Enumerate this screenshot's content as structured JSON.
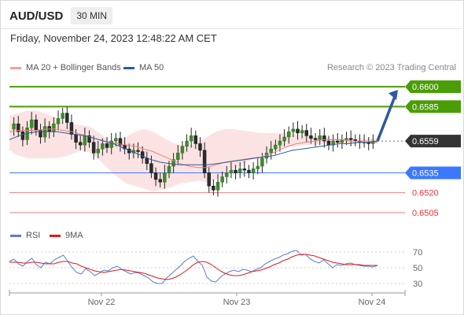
{
  "header": {
    "symbol": "AUD/USD",
    "timeframe": "30 MIN",
    "timestamp": "Friday, November 24, 2023 12:48:22 AM CET"
  },
  "legend": {
    "ma20": {
      "label": "MA 20 + Bollinger Bands",
      "color": "#f4a0a0"
    },
    "ma50": {
      "label": "MA 50",
      "color": "#2e5a9c"
    },
    "rsi": {
      "label": "RSI",
      "color": "#5b7bd5"
    },
    "ma9": {
      "label": "9MA",
      "color": "#e41a1a"
    }
  },
  "credit": "Research © 2023 Trading Central",
  "chart_data": {
    "type": "candlestick",
    "price_range": [
      0.6499,
      0.6606
    ],
    "x_ticks": [
      "Nov 22",
      "Nov 23",
      "Nov 24"
    ],
    "levels": [
      {
        "label": "0.6600",
        "value": 0.66,
        "style": "resistance",
        "color": "#4a9d06"
      },
      {
        "label": "0.6585",
        "value": 0.6585,
        "style": "resistance",
        "color": "#4a9d06"
      },
      {
        "label": "0.6559",
        "value": 0.6559,
        "style": "current",
        "color": "#333333"
      },
      {
        "label": "0.6535",
        "value": 0.6535,
        "style": "support",
        "color": "#3c78ff"
      },
      {
        "label": "0.6520",
        "value": 0.652,
        "style": "support",
        "color": "#f08080"
      },
      {
        "label": "0.6505",
        "value": 0.6505,
        "style": "support",
        "color": "#f08080"
      }
    ],
    "price_series": [
      0.6568,
      0.6572,
      0.6566,
      0.656,
      0.6569,
      0.6575,
      0.6567,
      0.6562,
      0.657,
      0.6566,
      0.6572,
      0.6576,
      0.658,
      0.6573,
      0.6564,
      0.6558,
      0.6556,
      0.6563,
      0.6558,
      0.655,
      0.6553,
      0.6557,
      0.6554,
      0.6559,
      0.6561,
      0.6556,
      0.6553,
      0.655,
      0.6552,
      0.6551,
      0.6546,
      0.6542,
      0.6535,
      0.653,
      0.6528,
      0.6535,
      0.654,
      0.6545,
      0.655,
      0.6555,
      0.6559,
      0.6563,
      0.6557,
      0.6552,
      0.6535,
      0.6525,
      0.6522,
      0.6528,
      0.6532,
      0.6535,
      0.6537,
      0.6535,
      0.6538,
      0.6537,
      0.6535,
      0.6538,
      0.654,
      0.6546,
      0.655,
      0.6553,
      0.6556,
      0.6559,
      0.6562,
      0.6566,
      0.6568,
      0.6565,
      0.6567,
      0.6563,
      0.6561,
      0.656,
      0.6563,
      0.6559,
      0.6556,
      0.6559,
      0.6558,
      0.656,
      0.6561,
      0.656,
      0.6559,
      0.6558,
      0.6558,
      0.6557,
      0.6559
    ],
    "ma20_series": [
      0.6566,
      0.6567,
      0.6567,
      0.6567,
      0.6568,
      0.6568,
      0.6567,
      0.6566,
      0.6564,
      0.6562,
      0.656,
      0.6558,
      0.6557,
      0.6556,
      0.6555,
      0.6553,
      0.6551,
      0.6548,
      0.6545,
      0.6542,
      0.654,
      0.6539,
      0.6539,
      0.6541,
      0.6543,
      0.6544,
      0.6545,
      0.6546,
      0.6547,
      0.6549,
      0.6552,
      0.6555,
      0.6557,
      0.6558,
      0.6559,
      0.656,
      0.656,
      0.656,
      0.6559,
      0.6559,
      0.6559,
      0.6558
    ],
    "ma50_series": [
      0.656,
      0.6563,
      0.6565,
      0.6566,
      0.6566,
      0.6566,
      0.6565,
      0.6564,
      0.6563,
      0.6561,
      0.6559,
      0.6557,
      0.6554,
      0.6551,
      0.6548,
      0.6545,
      0.6543,
      0.6542,
      0.6541,
      0.6541,
      0.6541,
      0.6541,
      0.6542,
      0.6543,
      0.6544,
      0.6545,
      0.6546,
      0.6547,
      0.6548,
      0.655,
      0.6552,
      0.6553,
      0.6554,
      0.6555,
      0.6556,
      0.6557,
      0.6557,
      0.6558,
      0.6558,
      0.6559
    ],
    "bollinger_upper": [
      0.6578,
      0.658,
      0.6582,
      0.6582,
      0.658,
      0.6577,
      0.6573,
      0.6572,
      0.6571,
      0.657,
      0.6565,
      0.656,
      0.6558,
      0.6562,
      0.6566,
      0.6568,
      0.6566,
      0.6562,
      0.6558,
      0.6556,
      0.6556,
      0.6558,
      0.6562,
      0.6566,
      0.6568,
      0.6568,
      0.6567,
      0.6566,
      0.6565,
      0.6565,
      0.6565,
      0.6565,
      0.6564,
      0.6563,
      0.6562,
      0.6562,
      0.6561,
      0.6561,
      0.6561,
      0.6561,
      0.6561,
      0.6561
    ],
    "bollinger_lower": [
      0.6552,
      0.6548,
      0.6546,
      0.6546,
      0.6546,
      0.6546,
      0.6547,
      0.6549,
      0.6552,
      0.655,
      0.6545,
      0.6538,
      0.6532,
      0.6527,
      0.6525,
      0.6523,
      0.6521,
      0.6522,
      0.6524,
      0.6527,
      0.6528,
      0.6529,
      0.6528,
      0.653,
      0.6533,
      0.6537,
      0.6541,
      0.6545,
      0.6548,
      0.6551,
      0.6553,
      0.6554,
      0.6555,
      0.6556,
      0.6556,
      0.6557,
      0.6557,
      0.6557,
      0.6557,
      0.6557,
      0.6557,
      0.6557
    ],
    "projection": {
      "from": 0.6559,
      "to": 0.66
    },
    "rsi": {
      "ticks": [
        70,
        50,
        30
      ],
      "range": [
        22,
        78
      ],
      "values": [
        58,
        61,
        55,
        52,
        58,
        62,
        54,
        50,
        57,
        55,
        60,
        63,
        66,
        58,
        50,
        44,
        42,
        49,
        45,
        40,
        43,
        47,
        46,
        50,
        52,
        48,
        45,
        42,
        44,
        43,
        40,
        37,
        32,
        30,
        30,
        37,
        42,
        47,
        52,
        58,
        62,
        65,
        58,
        53,
        38,
        33,
        32,
        38,
        42,
        45,
        47,
        45,
        48,
        47,
        45,
        48,
        50,
        55,
        58,
        61,
        63,
        66,
        68,
        71,
        72,
        66,
        67,
        61,
        58,
        56,
        60,
        55,
        50,
        54,
        53,
        55,
        56,
        54,
        53,
        52,
        52,
        51,
        53
      ],
      "ma9": [
        57,
        57,
        57,
        56,
        56,
        57,
        57,
        56,
        55,
        55,
        55,
        57,
        58,
        58,
        56,
        55,
        52,
        50,
        48,
        46,
        45,
        44,
        45,
        46,
        47,
        48,
        47,
        46,
        45,
        44,
        43,
        41,
        39,
        37,
        36,
        35,
        36,
        38,
        41,
        45,
        49,
        54,
        57,
        58,
        57,
        54,
        50,
        46,
        43,
        41,
        40,
        40,
        41,
        43,
        45,
        46,
        47,
        49,
        51,
        54,
        56,
        59,
        61,
        64,
        66,
        67,
        67,
        66,
        65,
        63,
        61,
        59,
        57,
        56,
        55,
        54,
        54,
        54,
        54,
        53,
        53,
        53,
        53
      ]
    }
  }
}
